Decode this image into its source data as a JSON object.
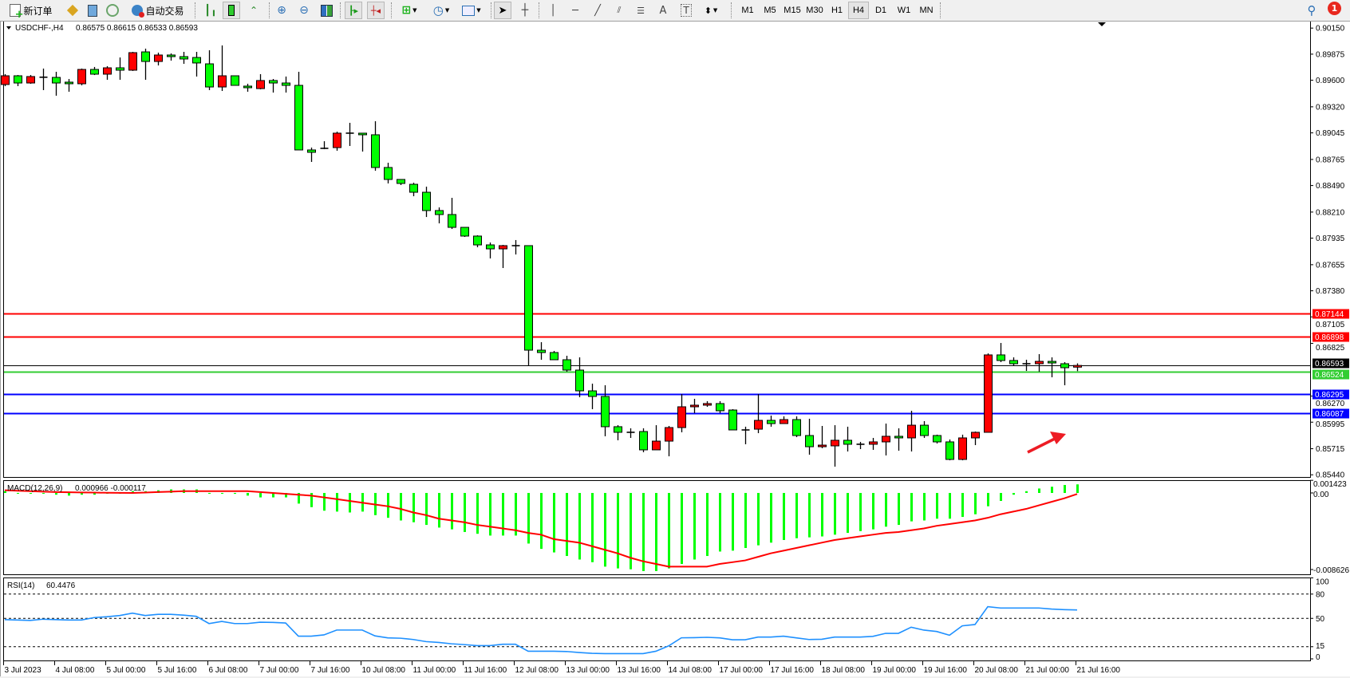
{
  "toolbar": {
    "new_order_label": "新订单",
    "auto_trading_label": "自动交易",
    "timeframes": [
      "M1",
      "M5",
      "M15",
      "M30",
      "H1",
      "H4",
      "D1",
      "W1",
      "MN"
    ],
    "active_timeframe": "H4",
    "notification_count": "1"
  },
  "chart": {
    "symbol_label": "USDCHF-,H4",
    "ohlc_label": "0.86575 0.86615 0.86533 0.86593",
    "colors": {
      "bull": "#ff0000",
      "bear": "#00ff00",
      "resistance": "#ff0000",
      "support": "#0000ff",
      "bid": "#000000",
      "ask": "#32cd32"
    },
    "price_ticks": [
      "0.90150",
      "0.89875",
      "0.89600",
      "0.89320",
      "0.89045",
      "0.88765",
      "0.88490",
      "0.88210",
      "0.87935",
      "0.87655",
      "0.87380",
      "0.87105",
      "0.86825",
      "0.86270",
      "0.85995",
      "0.85715",
      "0.85440"
    ],
    "levels": [
      {
        "price": "0.87144",
        "color": "#ff0000"
      },
      {
        "price": "0.86898",
        "color": "#ff0000"
      },
      {
        "price": "0.86593",
        "color": "#000000"
      },
      {
        "price": "0.86524",
        "color": "#32cd32"
      },
      {
        "price": "0.86295",
        "color": "#0000ff"
      },
      {
        "price": "0.86087",
        "color": "#0000ff"
      }
    ],
    "time_labels": [
      "3 Jul 2023",
      "4 Jul 08:00",
      "5 Jul 00:00",
      "5 Jul 16:00",
      "6 Jul 08:00",
      "7 Jul 00:00",
      "7 Jul 16:00",
      "10 Jul 08:00",
      "11 Jul 00:00",
      "11 Jul 16:00",
      "12 Jul 08:00",
      "13 Jul 00:00",
      "13 Jul 16:00",
      "14 Jul 08:00",
      "17 Jul 00:00",
      "17 Jul 16:00",
      "18 Jul 08:00",
      "19 Jul 00:00",
      "19 Jul 16:00",
      "20 Jul 08:00",
      "21 Jul 00:00",
      "21 Jul 16:00"
    ],
    "annotation": {
      "type": "arrow",
      "color": "#ed1c24",
      "direction": "up-right"
    }
  },
  "chart_data": [
    {
      "type": "candlestick",
      "title": "USDCHF-,H4",
      "ylim": [
        0.8544,
        0.9015
      ],
      "ohlc": [
        [
          0.89555,
          0.89664,
          0.89538,
          0.89647
        ],
        [
          0.89647,
          0.89655,
          0.89538,
          0.89571
        ],
        [
          0.89571,
          0.89655,
          0.89563,
          0.89639
        ],
        [
          0.8963,
          0.89723,
          0.89496,
          0.89632
        ],
        [
          0.8963,
          0.89689,
          0.89437,
          0.89571
        ],
        [
          0.8958,
          0.89613,
          0.89479,
          0.89563
        ],
        [
          0.89563,
          0.89723,
          0.89546,
          0.89714
        ],
        [
          0.89714,
          0.8974,
          0.89655,
          0.89664
        ],
        [
          0.89664,
          0.89748,
          0.89605,
          0.89731
        ],
        [
          0.89731,
          0.8984,
          0.89605,
          0.89706
        ],
        [
          0.89706,
          0.89899,
          0.89698,
          0.89891
        ],
        [
          0.89899,
          0.89933,
          0.89605,
          0.89798
        ],
        [
          0.89798,
          0.89891,
          0.89756,
          0.89866
        ],
        [
          0.89866,
          0.89883,
          0.89807,
          0.89849
        ],
        [
          0.89849,
          0.89899,
          0.89773,
          0.89824
        ],
        [
          0.8984,
          0.89899,
          0.89639,
          0.89782
        ],
        [
          0.89773,
          0.89916,
          0.89496,
          0.89529
        ],
        [
          0.89529,
          0.89967,
          0.89487,
          0.89647
        ],
        [
          0.89647,
          0.89647,
          0.89546,
          0.89546
        ],
        [
          0.89538,
          0.89563,
          0.89479,
          0.89521
        ],
        [
          0.89512,
          0.89664,
          0.89504,
          0.89597
        ],
        [
          0.89597,
          0.89613,
          0.8947,
          0.89571
        ],
        [
          0.89571,
          0.89639,
          0.8947,
          0.89546
        ],
        [
          0.89546,
          0.89689,
          0.88865,
          0.88865
        ],
        [
          0.88865,
          0.8889,
          0.88739,
          0.8884
        ],
        [
          0.88882,
          0.88957,
          0.88873,
          0.88882
        ],
        [
          0.8889,
          0.89058,
          0.88857,
          0.89042
        ],
        [
          0.89042,
          0.89151,
          0.88907,
          0.89042
        ],
        [
          0.89042,
          0.89042,
          0.88848,
          0.89025
        ],
        [
          0.89025,
          0.89168,
          0.88646,
          0.8868
        ],
        [
          0.8868,
          0.8873,
          0.88512,
          0.88554
        ],
        [
          0.88554,
          0.88554,
          0.88495,
          0.88512
        ],
        [
          0.88503,
          0.8852,
          0.88377,
          0.88419
        ],
        [
          0.88419,
          0.88478,
          0.88158,
          0.88226
        ],
        [
          0.88226,
          0.88259,
          0.88091,
          0.88184
        ],
        [
          0.88184,
          0.8836,
          0.88032,
          0.88049
        ],
        [
          0.88049,
          0.88049,
          0.87948,
          0.87957
        ],
        [
          0.87957,
          0.87965,
          0.87839,
          0.87864
        ],
        [
          0.87864,
          0.87889,
          0.87721,
          0.87822
        ],
        [
          0.87822,
          0.87864,
          0.8762,
          0.87856
        ],
        [
          0.87856,
          0.87915,
          0.87763,
          0.87856
        ],
        [
          0.87856,
          0.87856,
          0.86586,
          0.86754
        ],
        [
          0.86754,
          0.86838,
          0.86653,
          0.86729
        ],
        [
          0.86729,
          0.86746,
          0.86653,
          0.86653
        ],
        [
          0.86653,
          0.86695,
          0.86527,
          0.86544
        ],
        [
          0.86544,
          0.86678,
          0.86258,
          0.86325
        ],
        [
          0.86325,
          0.86401,
          0.86132,
          0.86266
        ],
        [
          0.86266,
          0.86384,
          0.85846,
          0.85947
        ],
        [
          0.85947,
          0.85963,
          0.85804,
          0.85888
        ],
        [
          0.85888,
          0.8593,
          0.85829,
          0.85888
        ],
        [
          0.85896,
          0.8593,
          0.85678,
          0.85703
        ],
        [
          0.85703,
          0.85963,
          0.85703,
          0.85795
        ],
        [
          0.85795,
          0.85955,
          0.85635,
          0.85938
        ],
        [
          0.85938,
          0.86291,
          0.85888,
          0.86157
        ],
        [
          0.86157,
          0.86241,
          0.8609,
          0.86174
        ],
        [
          0.86174,
          0.86216,
          0.86157,
          0.86191
        ],
        [
          0.86191,
          0.86216,
          0.8609,
          0.86115
        ],
        [
          0.86123,
          0.86132,
          0.85913,
          0.85913
        ],
        [
          0.85913,
          0.85947,
          0.85762,
          0.85913
        ],
        [
          0.85921,
          0.86291,
          0.85879,
          0.86014
        ],
        [
          0.86014,
          0.86064,
          0.85947,
          0.8598
        ],
        [
          0.8598,
          0.86056,
          0.8598,
          0.86022
        ],
        [
          0.86022,
          0.86056,
          0.85837,
          0.85854
        ],
        [
          0.85854,
          0.86031,
          0.85652,
          0.85736
        ],
        [
          0.85736,
          0.85955,
          0.8572,
          0.85753
        ],
        [
          0.85745,
          0.85963,
          0.85526,
          0.85804
        ],
        [
          0.85804,
          0.85947,
          0.85686,
          0.85762
        ],
        [
          0.85762,
          0.85787,
          0.85711,
          0.85762
        ],
        [
          0.85762,
          0.85829,
          0.85703,
          0.85787
        ],
        [
          0.85787,
          0.8598,
          0.85644,
          0.85846
        ],
        [
          0.85846,
          0.8593,
          0.85694,
          0.85829
        ],
        [
          0.85829,
          0.86115,
          0.85686,
          0.85963
        ],
        [
          0.85963,
          0.86006,
          0.85829,
          0.85854
        ],
        [
          0.85854,
          0.85863,
          0.8577,
          0.85787
        ],
        [
          0.85787,
          0.85812,
          0.85593,
          0.85602
        ],
        [
          0.85602,
          0.85863,
          0.85593,
          0.85829
        ],
        [
          0.85829,
          0.85896,
          0.85753,
          0.85888
        ],
        [
          0.85888,
          0.8672,
          0.85888,
          0.86704
        ],
        [
          0.86704,
          0.8683,
          0.86628,
          0.86645
        ],
        [
          0.86645,
          0.86678,
          0.86586,
          0.86611
        ],
        [
          0.86611,
          0.86653,
          0.86535,
          0.86611
        ],
        [
          0.86611,
          0.86712,
          0.86527,
          0.86636
        ],
        [
          0.86636,
          0.86678,
          0.86468,
          0.86619
        ],
        [
          0.86611,
          0.86628,
          0.86384,
          0.86569
        ],
        [
          0.86575,
          0.86615,
          0.86533,
          0.86593
        ]
      ]
    },
    {
      "type": "bar+line",
      "title": "MACD(12,26,9)",
      "values_label": "0.000966 -0.000117",
      "ylim": [
        -0.008626,
        0.001423
      ],
      "axis_labels": [
        "0.001423",
        "0.00",
        "-0.008626"
      ],
      "histogram": [
        0.0002,
        0,
        0,
        0,
        -0.0002,
        -0.0003,
        -0.0002,
        -0.0002,
        0,
        0,
        0.0002,
        0.0002,
        0.0003,
        0.0004,
        0.0004,
        0.0004,
        0,
        0,
        -0.0001,
        -0.0003,
        -0.0005,
        -0.0005,
        -0.0005,
        -0.0012,
        -0.0016,
        -0.002,
        -0.0021,
        -0.0022,
        -0.0021,
        -0.0025,
        -0.0028,
        -0.0031,
        -0.0033,
        -0.0036,
        -0.0039,
        -0.0041,
        -0.0044,
        -0.0046,
        -0.0048,
        -0.0048,
        -0.0048,
        -0.0057,
        -0.0063,
        -0.0067,
        -0.0071,
        -0.0075,
        -0.0078,
        -0.0083,
        -0.0085,
        -0.0086,
        -0.0088,
        -0.0088,
        -0.0085,
        -0.008,
        -0.0075,
        -0.0071,
        -0.0066,
        -0.0065,
        -0.0062,
        -0.0059,
        -0.0056,
        -0.0053,
        -0.0051,
        -0.005,
        -0.0049,
        -0.0047,
        -0.0045,
        -0.0043,
        -0.0041,
        -0.0038,
        -0.0036,
        -0.0032,
        -0.0031,
        -0.0029,
        -0.0029,
        -0.0027,
        -0.0024,
        -0.0015,
        -0.0009,
        -0.0002,
        0.0002,
        0.0005,
        0.0007,
        0.0009,
        0.000966
      ],
      "signal": [
        0.0003,
        0.00025,
        0.0002,
        0.00015,
        0.0001,
        8e-05,
        6e-05,
        4e-05,
        2e-05,
        1e-05,
        0,
        5e-05,
        0.0001,
        0.00015,
        0.0002,
        0.0002,
        0.0002,
        0.0002,
        0.0002,
        0.0002,
        0.0001,
        0,
        -0.0001,
        -0.0002,
        -0.0003,
        -0.0005,
        -0.0007,
        -0.0009,
        -0.0011,
        -0.0013,
        -0.0015,
        -0.0018,
        -0.0022,
        -0.0025,
        -0.0029,
        -0.0031,
        -0.0033,
        -0.0036,
        -0.0038,
        -0.004,
        -0.0042,
        -0.0045,
        -0.0047,
        -0.0052,
        -0.0054,
        -0.0056,
        -0.006,
        -0.0064,
        -0.0068,
        -0.0073,
        -0.0077,
        -0.008,
        -0.0083,
        -0.0083,
        -0.0083,
        -0.0083,
        -0.008,
        -0.0078,
        -0.0076,
        -0.0072,
        -0.0068,
        -0.0065,
        -0.0062,
        -0.0059,
        -0.0056,
        -0.0053,
        -0.0051,
        -0.0049,
        -0.0047,
        -0.0045,
        -0.0044,
        -0.0042,
        -0.004,
        -0.0037,
        -0.0035,
        -0.0033,
        -0.0031,
        -0.0028,
        -0.0024,
        -0.0021,
        -0.0018,
        -0.0014,
        -0.001,
        -0.0006,
        -0.000117
      ]
    },
    {
      "type": "line",
      "title": "RSI(14)",
      "values_label": "60.4476",
      "ylim": [
        0,
        100
      ],
      "levels": [
        80,
        50,
        15
      ],
      "axis_labels": [
        "100",
        "80",
        "50",
        "15",
        "0"
      ],
      "values": [
        48.5,
        48,
        47.5,
        49,
        48.5,
        48,
        48,
        51,
        52,
        53.5,
        56.5,
        53.5,
        55,
        55,
        54,
        52.5,
        43.6,
        46.2,
        43.6,
        43.6,
        45.3,
        45,
        44.3,
        28,
        28,
        29.6,
        35.6,
        35.6,
        35.6,
        28.4,
        25.9,
        25.5,
        23.9,
        21.3,
        20.3,
        18.6,
        17.6,
        16.3,
        16.3,
        18,
        18,
        9.4,
        9.4,
        9.4,
        9.1,
        7.8,
        6.8,
        6.5,
        6.5,
        6.5,
        6.5,
        9.4,
        16,
        26,
        26.2,
        26.6,
        25.9,
        23.6,
        23.6,
        26.9,
        26.9,
        28,
        25.9,
        23.9,
        24.2,
        26.9,
        26.9,
        26.9,
        27.8,
        31.5,
        31.5,
        39.1,
        35.5,
        33.8,
        29.2,
        40.8,
        42.4,
        64.4,
        62.8,
        62.8,
        62.8,
        62.8,
        61.5,
        60.8,
        60.4476
      ]
    }
  ]
}
